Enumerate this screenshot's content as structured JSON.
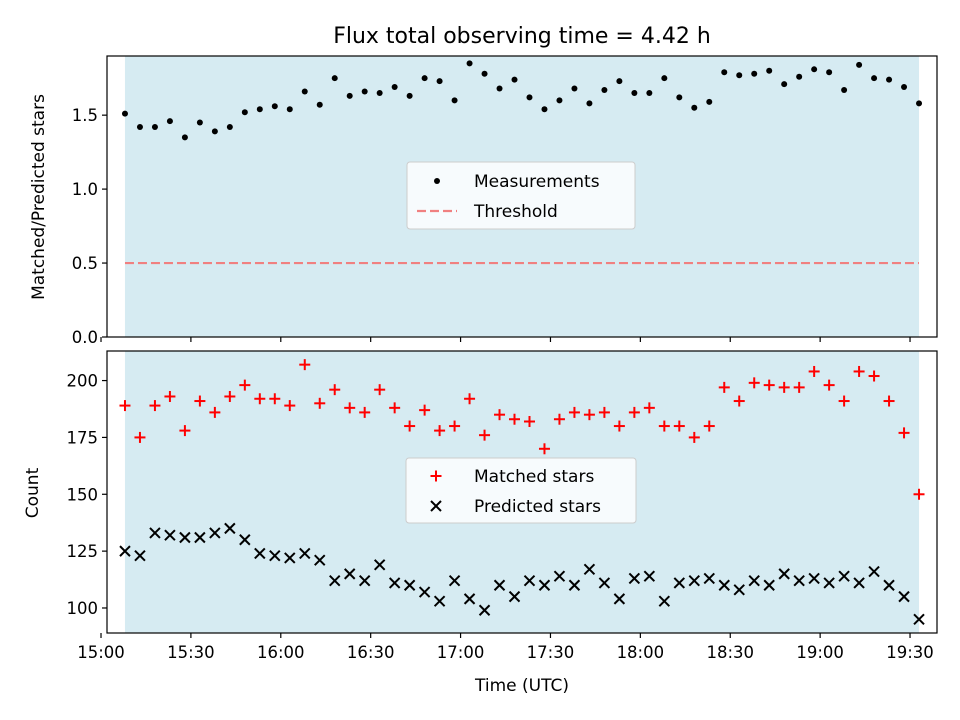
{
  "title": "Flux total observing time = 4.42 h",
  "colors": {
    "shade": "#add8e6",
    "measurement": "#000000",
    "threshold": "#f08080",
    "matched": "#ff0000",
    "predicted": "#000000"
  },
  "chart_data": [
    {
      "type": "scatter",
      "ylabel": "Matched/Predicted stars",
      "ylim": [
        0,
        1.9
      ],
      "yticks": [
        0.0,
        0.5,
        1.0,
        1.5
      ],
      "ytick_labels": [
        "0.0",
        "0.5",
        "1.0",
        "1.5"
      ],
      "shaded_span": [
        "15:08",
        "19:33"
      ],
      "threshold": 0.5,
      "legend": {
        "placement": "center",
        "entries": [
          "Measurements",
          "Threshold"
        ]
      },
      "x": [
        "15:08",
        "15:13",
        "15:18",
        "15:23",
        "15:28",
        "15:33",
        "15:38",
        "15:43",
        "15:48",
        "15:53",
        "15:58",
        "16:03",
        "16:08",
        "16:13",
        "16:18",
        "16:23",
        "16:28",
        "16:33",
        "16:38",
        "16:43",
        "16:48",
        "16:53",
        "16:58",
        "17:03",
        "17:08",
        "17:13",
        "17:18",
        "17:23",
        "17:28",
        "17:33",
        "17:38",
        "17:43",
        "17:48",
        "17:53",
        "17:58",
        "18:03",
        "18:08",
        "18:13",
        "18:18",
        "18:23",
        "18:28",
        "18:33",
        "18:38",
        "18:43",
        "18:48",
        "18:53",
        "18:58",
        "19:03",
        "19:08",
        "19:13",
        "19:18",
        "19:23",
        "19:28",
        "19:33"
      ],
      "series": [
        {
          "name": "Measurements",
          "values": [
            1.51,
            1.42,
            1.42,
            1.46,
            1.35,
            1.45,
            1.39,
            1.42,
            1.52,
            1.54,
            1.56,
            1.54,
            1.66,
            1.57,
            1.75,
            1.63,
            1.66,
            1.65,
            1.69,
            1.63,
            1.75,
            1.73,
            1.6,
            1.85,
            1.78,
            1.68,
            1.74,
            1.62,
            1.54,
            1.6,
            1.68,
            1.58,
            1.67,
            1.73,
            1.65,
            1.65,
            1.75,
            1.62,
            1.55,
            1.59,
            1.79,
            1.77,
            1.78,
            1.8,
            1.71,
            1.76,
            1.81,
            1.79,
            1.67,
            1.84,
            1.75,
            1.74,
            1.69,
            1.58
          ]
        }
      ]
    },
    {
      "type": "scatter",
      "xlabel": "Time (UTC)",
      "ylabel": "Count",
      "ylim": [
        89,
        213
      ],
      "yticks": [
        100,
        125,
        150,
        175,
        200
      ],
      "ytick_labels": [
        "100",
        "125",
        "150",
        "175",
        "200"
      ],
      "xlim": [
        "15:02",
        "19:39"
      ],
      "xticks": [
        "15:00",
        "15:30",
        "16:00",
        "16:30",
        "17:00",
        "17:30",
        "18:00",
        "18:30",
        "19:00",
        "19:30"
      ],
      "shaded_span": [
        "15:08",
        "19:33"
      ],
      "legend": {
        "placement": "center",
        "entries": [
          "Matched stars",
          "Predicted stars"
        ]
      },
      "x": [
        "15:08",
        "15:13",
        "15:18",
        "15:23",
        "15:28",
        "15:33",
        "15:38",
        "15:43",
        "15:48",
        "15:53",
        "15:58",
        "16:03",
        "16:08",
        "16:13",
        "16:18",
        "16:23",
        "16:28",
        "16:33",
        "16:38",
        "16:43",
        "16:48",
        "16:53",
        "16:58",
        "17:03",
        "17:08",
        "17:13",
        "17:18",
        "17:23",
        "17:28",
        "17:33",
        "17:38",
        "17:43",
        "17:48",
        "17:53",
        "17:58",
        "18:03",
        "18:08",
        "18:13",
        "18:18",
        "18:23",
        "18:28",
        "18:33",
        "18:38",
        "18:43",
        "18:48",
        "18:53",
        "18:58",
        "19:03",
        "19:08",
        "19:13",
        "19:18",
        "19:23",
        "19:28",
        "19:33"
      ],
      "series": [
        {
          "name": "Matched stars",
          "marker": "+",
          "values": [
            189,
            175,
            189,
            193,
            178,
            191,
            186,
            193,
            198,
            192,
            192,
            189,
            207,
            190,
            196,
            188,
            186,
            196,
            188,
            180,
            187,
            178,
            180,
            192,
            176,
            185,
            183,
            182,
            170,
            183,
            186,
            185,
            186,
            180,
            186,
            188,
            180,
            180,
            175,
            180,
            197,
            191,
            199,
            198,
            197,
            197,
            204,
            198,
            191,
            204,
            202,
            191,
            177,
            150
          ]
        },
        {
          "name": "Predicted stars",
          "marker": "x",
          "values": [
            125,
            123,
            133,
            132,
            131,
            131,
            133,
            135,
            130,
            124,
            123,
            122,
            124,
            121,
            112,
            115,
            112,
            119,
            111,
            110,
            107,
            103,
            112,
            104,
            99,
            110,
            105,
            112,
            110,
            114,
            110,
            117,
            111,
            104,
            113,
            114,
            103,
            111,
            112,
            113,
            110,
            108,
            112,
            110,
            115,
            112,
            113,
            111,
            114,
            111,
            116,
            110,
            105,
            95
          ]
        }
      ]
    }
  ]
}
